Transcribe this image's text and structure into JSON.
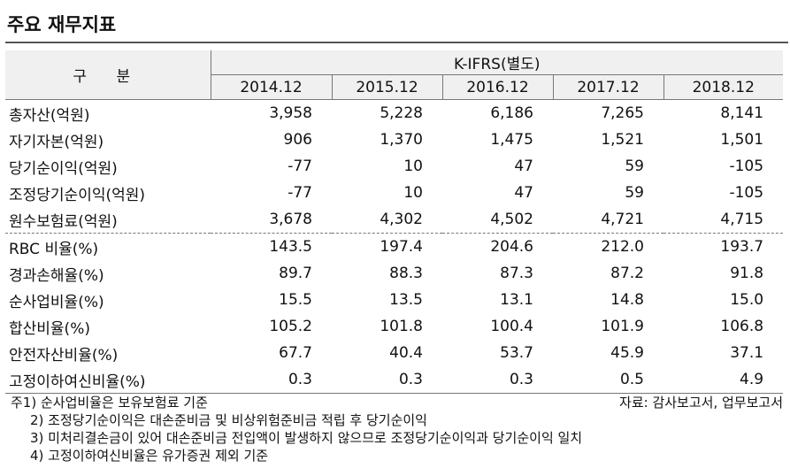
{
  "title": "주요 재무지표",
  "table": {
    "header": {
      "label": "구 분",
      "group": "K-IFRS(별도)",
      "years": [
        "2014.12",
        "2015.12",
        "2016.12",
        "2017.12",
        "2018.12"
      ]
    },
    "row_groups": [
      [
        [
          "총자산(억원)",
          "3,958",
          "5,228",
          "6,186",
          "7,265",
          "8,141"
        ],
        [
          "자기자본(억원)",
          "906",
          "1,370",
          "1,475",
          "1,521",
          "1,501"
        ],
        [
          "당기순이익(억원)",
          "-77",
          "10",
          "47",
          "59",
          "-105"
        ],
        [
          "조정당기순이익(억원)",
          "-77",
          "10",
          "47",
          "59",
          "-105"
        ],
        [
          "원수보험료(억원)",
          "3,678",
          "4,302",
          "4,502",
          "4,721",
          "4,715"
        ]
      ],
      [
        [
          "RBC 비율(%)",
          "143.5",
          "197.4",
          "204.6",
          "212.0",
          "193.7"
        ],
        [
          "경과손해율(%)",
          "89.7",
          "88.3",
          "87.3",
          "87.2",
          "91.8"
        ],
        [
          "순사업비율(%)",
          "15.5",
          "13.5",
          "13.1",
          "14.8",
          "15.0"
        ],
        [
          "합산비율(%)",
          "105.2",
          "101.8",
          "100.4",
          "101.9",
          "106.8"
        ],
        [
          "안전자산비율(%)",
          "67.7",
          "40.4",
          "53.7",
          "45.9",
          "37.1"
        ],
        [
          "고정이하여신비율(%)",
          "0.3",
          "0.3",
          "0.3",
          "0.5",
          "4.9"
        ]
      ]
    ]
  },
  "notes": {
    "items": [
      "주1) 순사업비율은 보유보험료 기준",
      "2) 조정당기순이익은 대손준비금 및 비상위험준비금 적립 후 당기순이익",
      "3) 미처리결손금이 있어 대손준비금 전입액이 발생하지 않으므로 조정당기순이익과 당기순이익 일치",
      "4) 고정이하여신비율은 유가증권 제외 기준"
    ],
    "source": "자료: 감사보고서, 업무보고서"
  }
}
